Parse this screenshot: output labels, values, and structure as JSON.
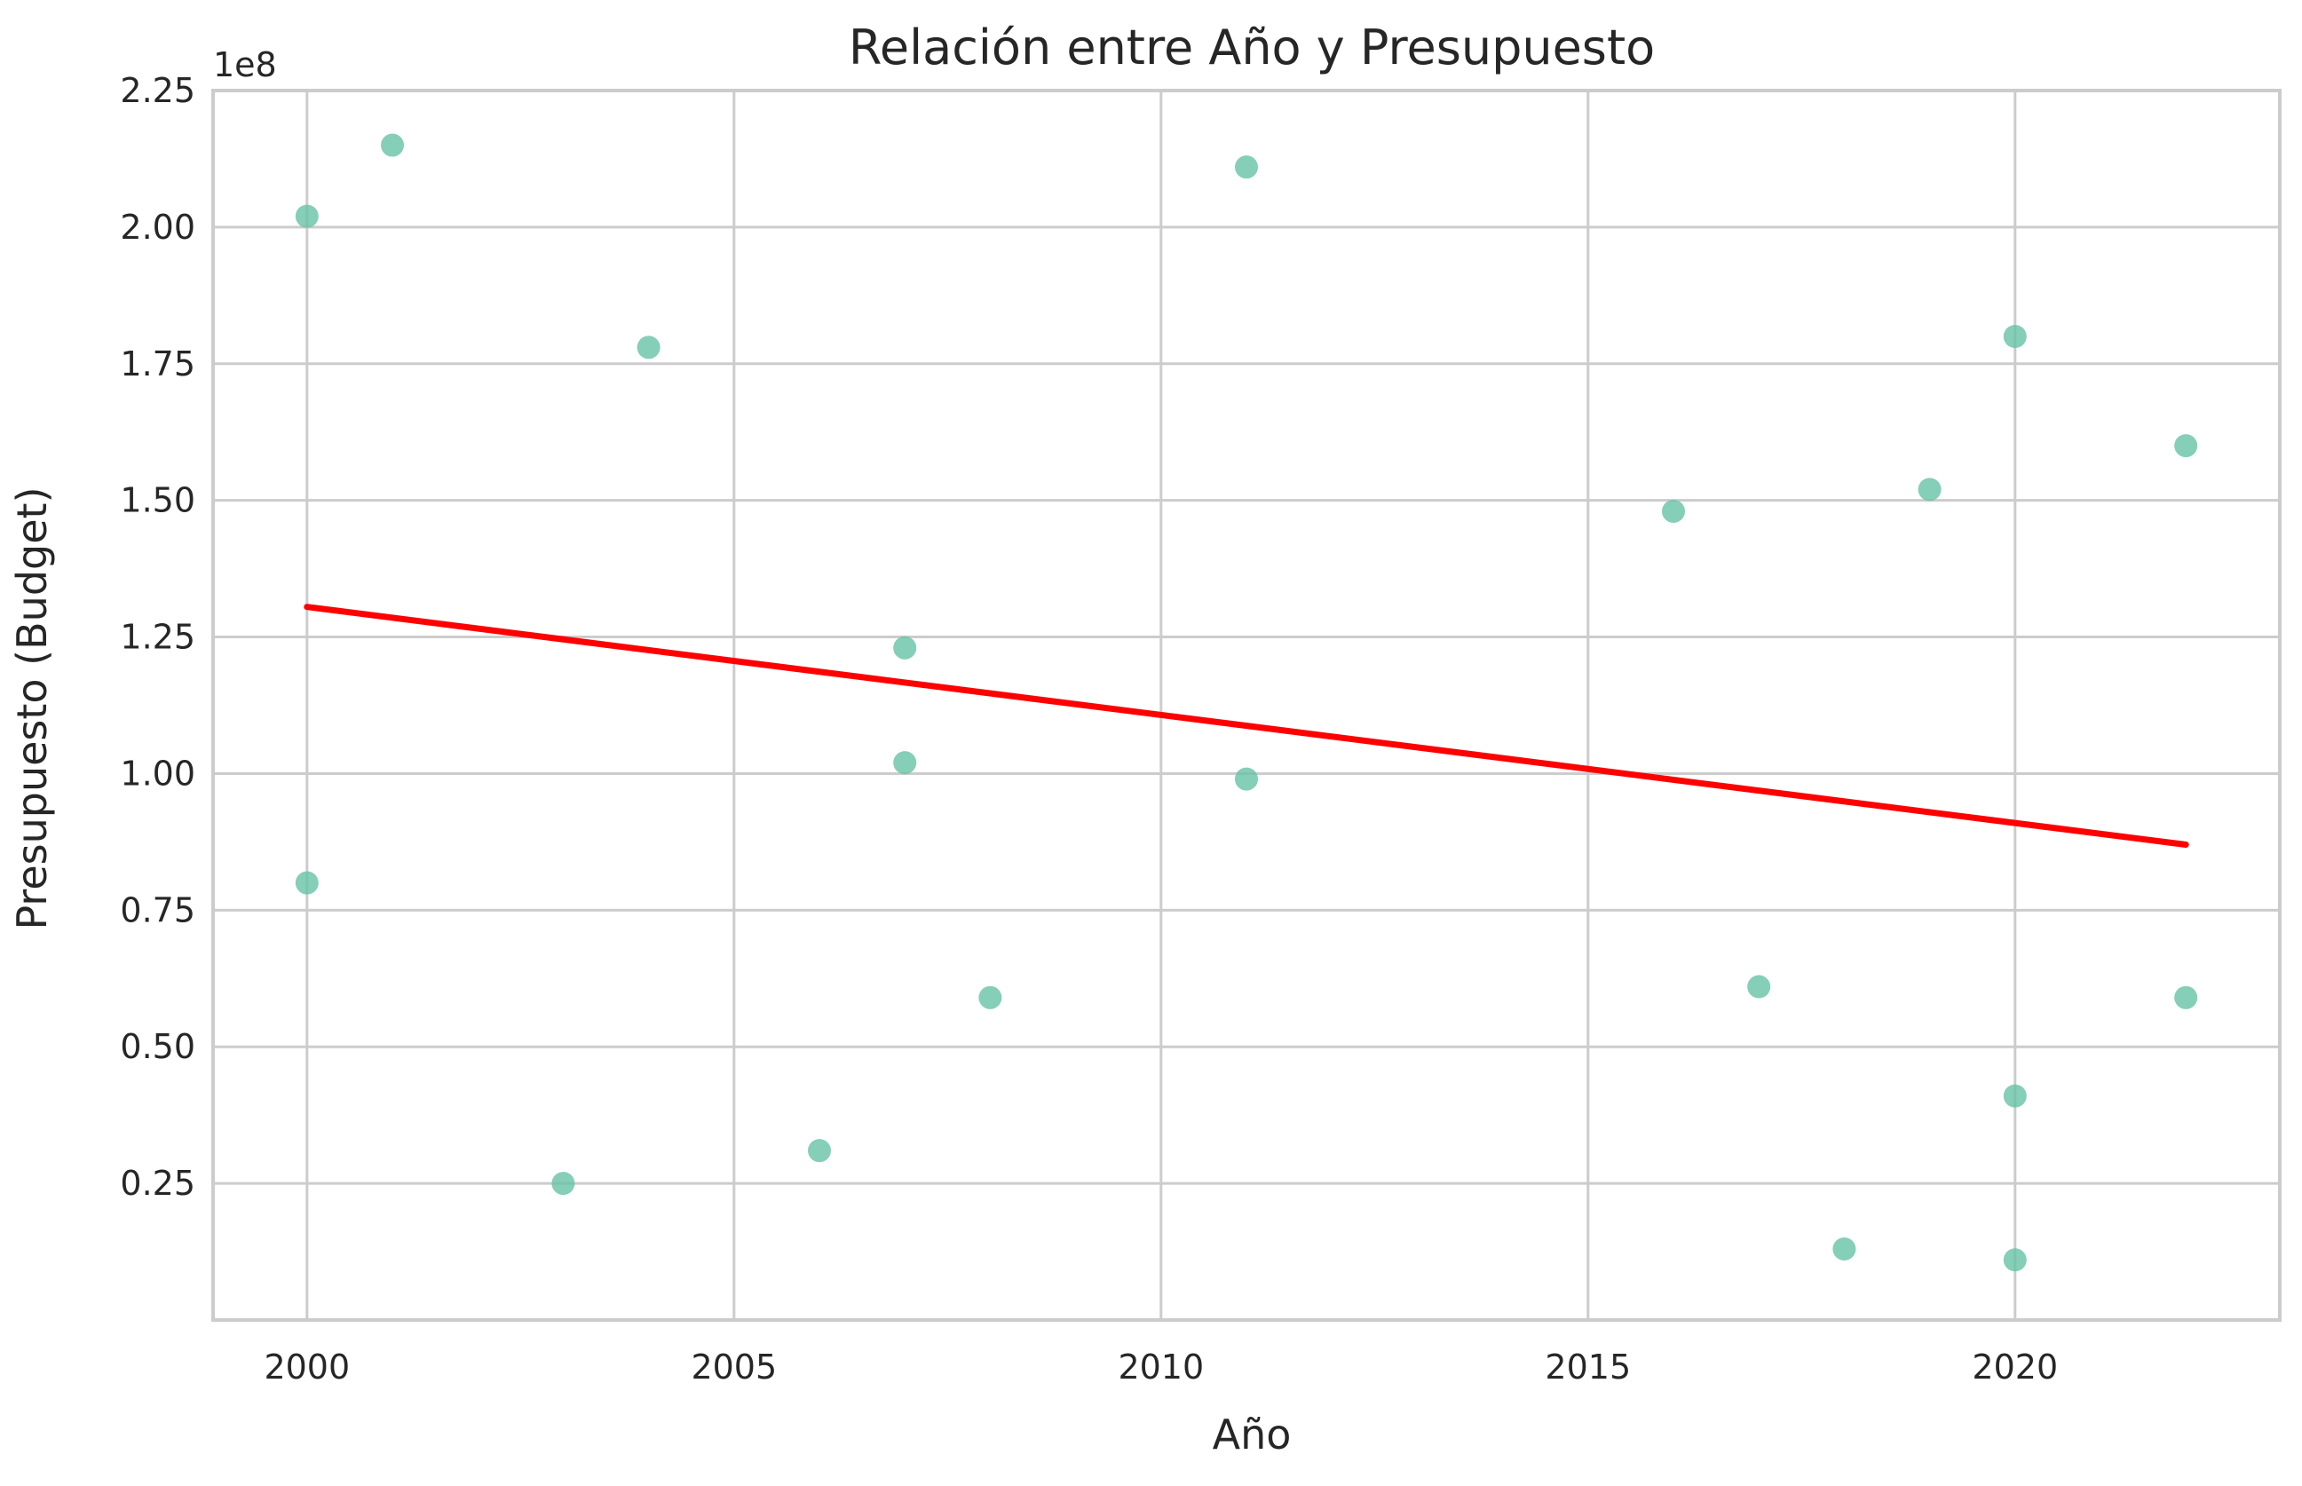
{
  "chart_data": {
    "type": "scatter",
    "title": "Relación entre Año y Presupuesto",
    "xlabel": "Año",
    "ylabel": "Presupuesto (Budget)",
    "y_offset_label": "1e8",
    "xlim": [
      1998.9,
      2023.1
    ],
    "ylim": [
      0.0,
      2.25
    ],
    "x_ticks": [
      2000,
      2005,
      2010,
      2015,
      2020
    ],
    "x_tick_labels": [
      "2000",
      "2005",
      "2010",
      "2015",
      "2020"
    ],
    "y_ticks": [
      0.25,
      0.5,
      0.75,
      1.0,
      1.25,
      1.5,
      1.75,
      2.0,
      2.25
    ],
    "y_tick_labels": [
      "0.25",
      "0.50",
      "0.75",
      "1.00",
      "1.25",
      "1.50",
      "1.75",
      "2.00",
      "2.25"
    ],
    "grid": true,
    "points": [
      {
        "x": 2000,
        "y": 2.02
      },
      {
        "x": 2000,
        "y": 0.8
      },
      {
        "x": 2001,
        "y": 2.15
      },
      {
        "x": 2003,
        "y": 0.25
      },
      {
        "x": 2004,
        "y": 1.78
      },
      {
        "x": 2006,
        "y": 0.31
      },
      {
        "x": 2007,
        "y": 1.23
      },
      {
        "x": 2007,
        "y": 1.02
      },
      {
        "x": 2008,
        "y": 0.59
      },
      {
        "x": 2011,
        "y": 2.11
      },
      {
        "x": 2011,
        "y": 0.99
      },
      {
        "x": 2016,
        "y": 1.48
      },
      {
        "x": 2017,
        "y": 0.61
      },
      {
        "x": 2018,
        "y": 0.13
      },
      {
        "x": 2019,
        "y": 1.52
      },
      {
        "x": 2020,
        "y": 1.8
      },
      {
        "x": 2020,
        "y": 0.41
      },
      {
        "x": 2020,
        "y": 0.11
      },
      {
        "x": 2022,
        "y": 1.6
      },
      {
        "x": 2022,
        "y": 0.59
      }
    ],
    "trend_line": {
      "x": [
        2000,
        2022
      ],
      "y": [
        1.305,
        0.87
      ]
    },
    "colors": {
      "points": "#66c2a5",
      "trend": "#ff0000"
    }
  }
}
